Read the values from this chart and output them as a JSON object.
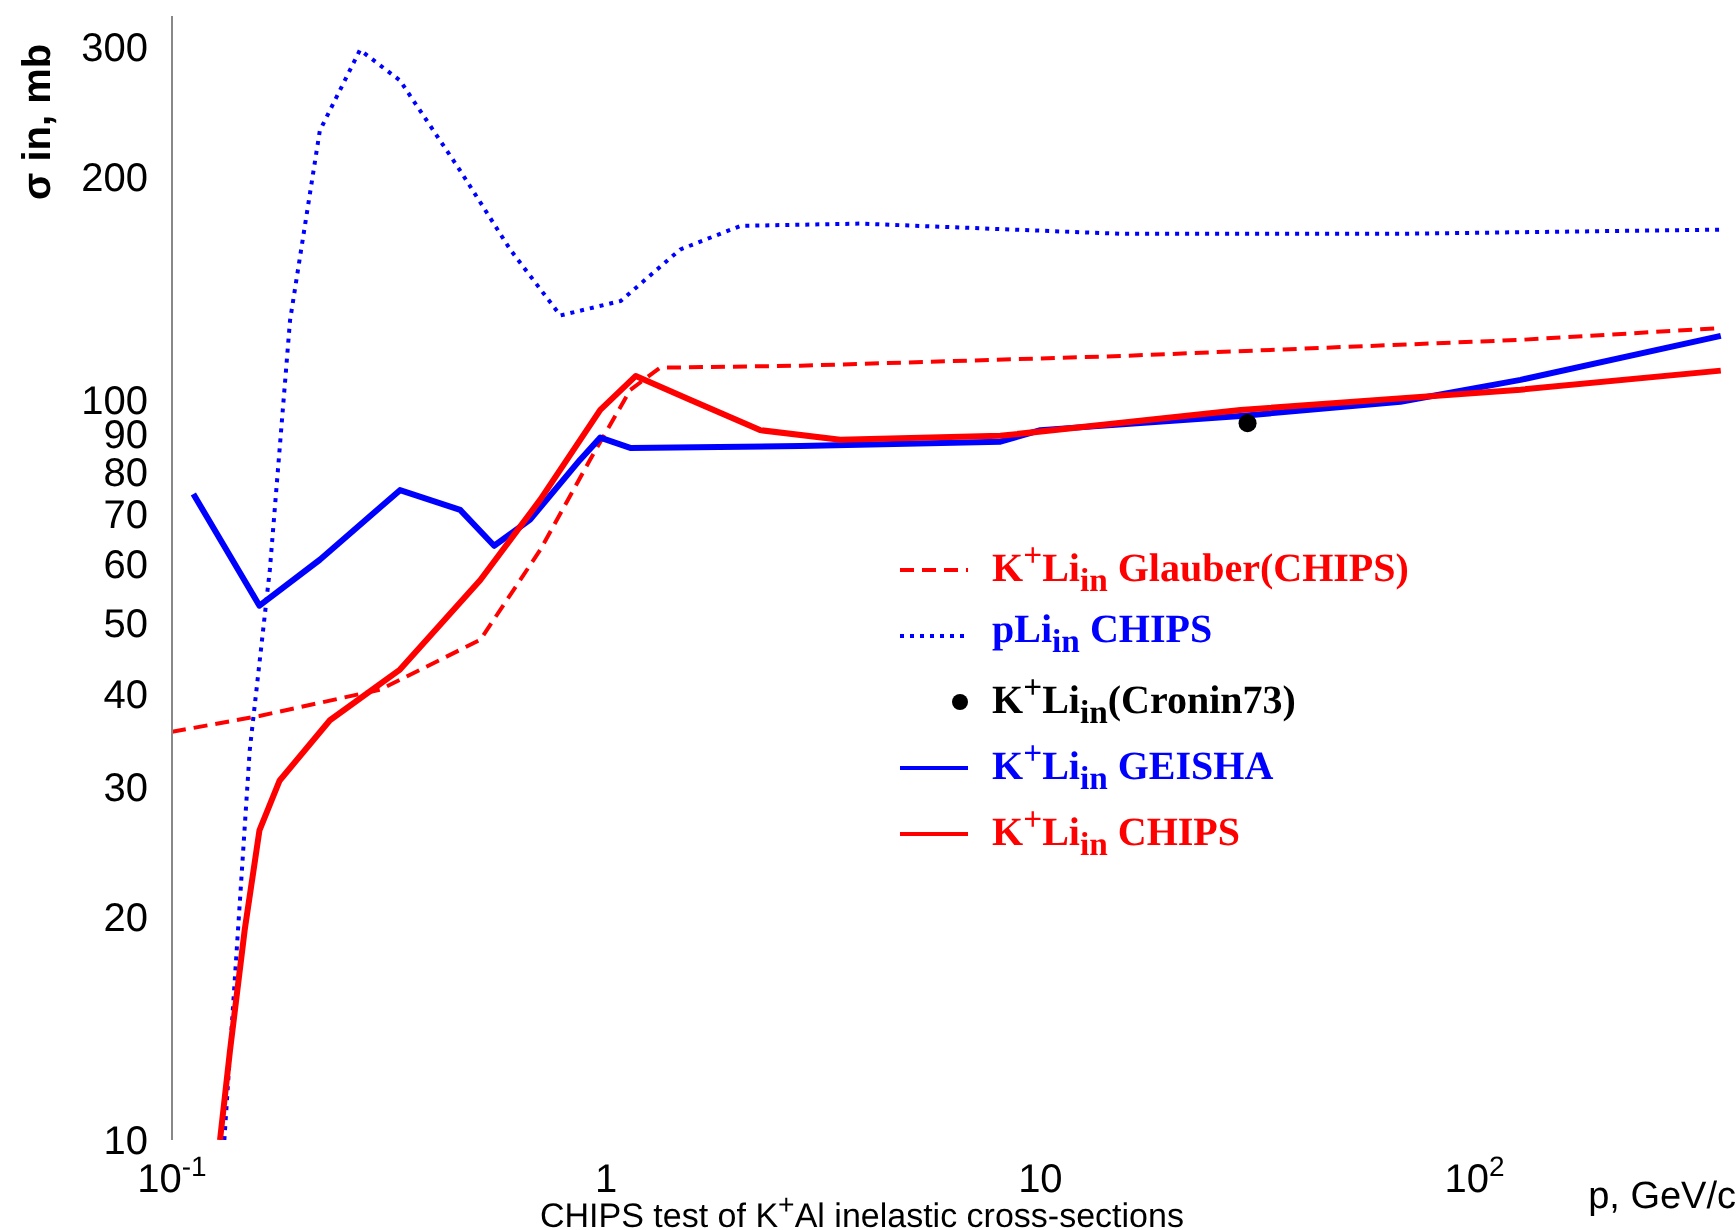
{
  "chart_data": {
    "type": "line",
    "title": "CHIPS test of K$^{+}$Al inelastic cross-sections",
    "xlabel": "p, GeV/c",
    "ylabel": "σ in, mb",
    "log": "xy",
    "grid": false,
    "legend": "right",
    "marker": "none",
    "xlim": [
      0.1,
      400
    ],
    "ylim": [
      10,
      330
    ],
    "xticks": [
      {
        "value": 0.1,
        "label": "10$^{-1}$"
      },
      1,
      10,
      {
        "value": 100,
        "label": "10$^{2}$"
      }
    ],
    "yticks": [
      10,
      20,
      30,
      40,
      50,
      60,
      70,
      80,
      90,
      100,
      200,
      300
    ],
    "series": [
      {
        "name": "K$^{+}$Li$_{in}$ Glauber(CHIPS)",
        "color": "#ff0000",
        "line_style": "dashed",
        "x": [
          0.1,
          0.159,
          0.302,
          0.513,
          0.705,
          0.918,
          1.136,
          1.33,
          2.8,
          15.3,
          127.6,
          369
        ],
        "values": [
          35.6,
          37.4,
          40.6,
          47.4,
          62.7,
          83,
          103.1,
          110.5,
          111.2,
          114.6,
          120.5,
          125
        ]
      },
      {
        "name": "pLi$_{in}$ CHIPS",
        "color": "#0000ff",
        "line_style": "dotted",
        "x": [
          0.132,
          0.14,
          0.151,
          0.168,
          0.187,
          0.219,
          0.271,
          0.335,
          0.461,
          0.601,
          0.784,
          1.08,
          1.48,
          2.04,
          3.85,
          15.3,
          67.5,
          369
        ],
        "values": [
          10,
          17,
          33.6,
          58.9,
          128,
          231,
          297,
          270,
          204,
          159.6,
          130,
          136,
          159.6,
          171.8,
          173,
          167.6,
          167.6,
          169.8
        ]
      },
      {
        "name": "K$^{+}$Li$_{in}$(Cronin73)",
        "type": "scatter",
        "color": "#000000",
        "marker": "circle",
        "x": [
          30
        ],
        "values": [
          93
        ]
      },
      {
        "name": "K$^{+}$Li$_{in}$ GEISHA",
        "color": "#0000ff",
        "line_style": "solid",
        "x": [
          0.112,
          0.159,
          0.219,
          0.335,
          0.461,
          0.552,
          0.668,
          0.871,
          0.969,
          1.136,
          2.8,
          8.09,
          10,
          28.9,
          67.5,
          127.6,
          369
        ],
        "values": [
          74.6,
          52.7,
          60.8,
          75.5,
          71,
          63.5,
          68.9,
          83,
          88.9,
          86.1,
          86.6,
          87.8,
          91,
          95.1,
          99.4,
          106.4,
          122
        ]
      },
      {
        "name": "K$^{+}$Li$_{in}$ CHIPS",
        "color": "#ff0000",
        "line_style": "solid",
        "x": [
          0.129,
          0.136,
          0.147,
          0.159,
          0.177,
          0.231,
          0.335,
          0.513,
          0.705,
          0.969,
          1.17,
          1.56,
          2.26,
          3.46,
          8.09,
          28.9,
          127.6,
          369
        ],
        "values": [
          10,
          13.2,
          19.2,
          26.2,
          30.6,
          36.9,
          43.2,
          57.1,
          73.3,
          96.9,
          107.7,
          100,
          91,
          88.3,
          89.4,
          96.9,
          103.2,
          109.5
        ]
      }
    ]
  }
}
